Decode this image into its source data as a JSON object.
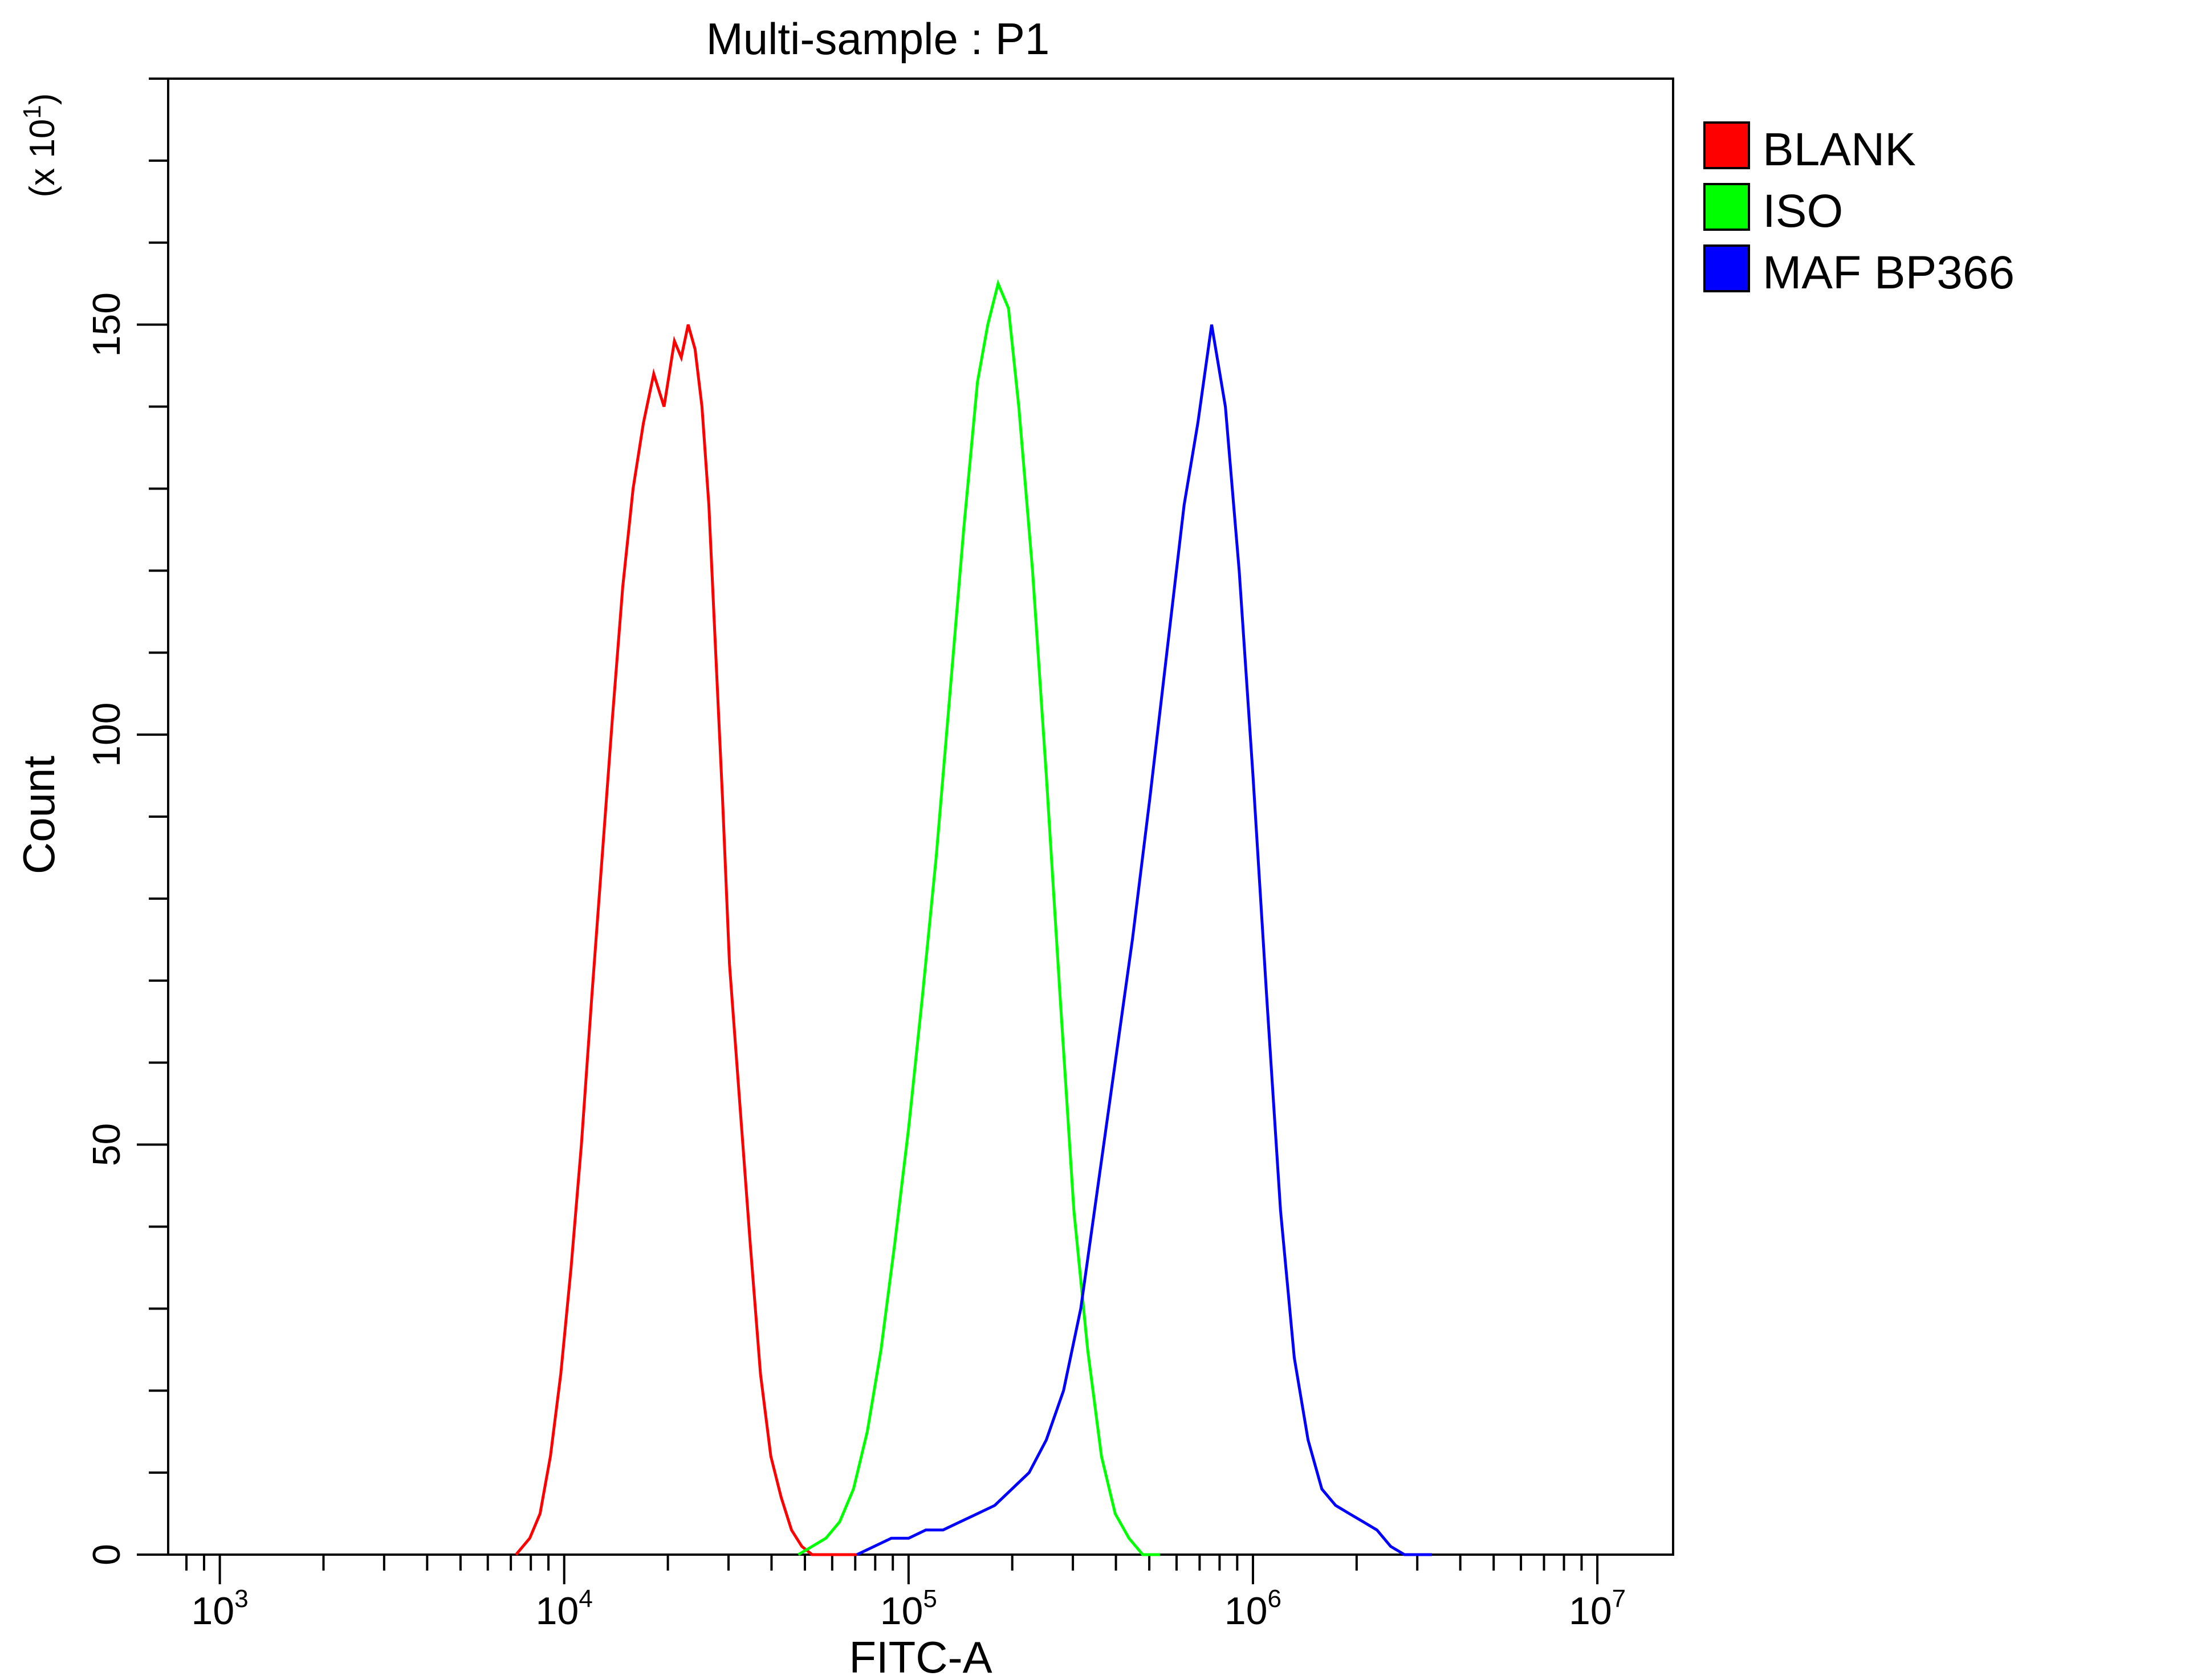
{
  "chart_data": {
    "type": "line",
    "title": "Multi-sample : P1",
    "xlabel": "FITC-A",
    "ylabel": "Count",
    "y_multiplier": {
      "prefix": "(x 10",
      "exponent": "1",
      "suffix": ")"
    },
    "x_scale": "log10",
    "xlim_log10": [
      2.85,
      7.22
    ],
    "ylim": [
      0,
      180
    ],
    "grid": false,
    "legend_position": "top-right-outside",
    "x_ticks": [
      {
        "base": "10",
        "exp": "3",
        "log": 3
      },
      {
        "base": "10",
        "exp": "4",
        "log": 4
      },
      {
        "base": "10",
        "exp": "5",
        "log": 5
      },
      {
        "base": "10",
        "exp": "6",
        "log": 6
      },
      {
        "base": "10",
        "exp": "7",
        "log": 7
      }
    ],
    "y_ticks": [
      {
        "value": 0,
        "label": "0"
      },
      {
        "value": 50,
        "label": "50"
      },
      {
        "value": 100,
        "label": "100"
      },
      {
        "value": 150,
        "label": "150"
      }
    ],
    "series": [
      {
        "name": "BLANK",
        "color": "#ff0000",
        "x_log10": [
          3.86,
          3.9,
          3.93,
          3.96,
          3.99,
          4.02,
          4.05,
          4.08,
          4.11,
          4.14,
          4.17,
          4.2,
          4.23,
          4.26,
          4.29,
          4.32,
          4.34,
          4.36,
          4.38,
          4.4,
          4.42,
          4.44,
          4.46,
          4.48,
          4.51,
          4.54,
          4.57,
          4.6,
          4.63,
          4.66,
          4.69,
          4.72,
          4.75,
          4.78,
          4.81,
          4.85
        ],
        "values": [
          0,
          2,
          5,
          12,
          22,
          35,
          50,
          68,
          85,
          102,
          118,
          130,
          138,
          144,
          140,
          148,
          146,
          150,
          147,
          140,
          128,
          110,
          92,
          72,
          55,
          38,
          22,
          12,
          7,
          3,
          1,
          0,
          0,
          0,
          0,
          0
        ]
      },
      {
        "name": "ISO",
        "color": "#00ff00",
        "x_log10": [
          4.68,
          4.72,
          4.76,
          4.8,
          4.84,
          4.88,
          4.92,
          4.96,
          5.0,
          5.04,
          5.08,
          5.12,
          5.16,
          5.2,
          5.23,
          5.26,
          5.29,
          5.32,
          5.36,
          5.4,
          5.44,
          5.48,
          5.52,
          5.56,
          5.6,
          5.64,
          5.68,
          5.73
        ],
        "values": [
          0,
          1,
          2,
          4,
          8,
          15,
          25,
          38,
          52,
          68,
          85,
          105,
          125,
          143,
          150,
          155,
          152,
          140,
          120,
          95,
          68,
          42,
          25,
          12,
          5,
          2,
          0,
          0
        ]
      },
      {
        "name": "MAF BP366",
        "color": "#0000ff",
        "x_log10": [
          4.85,
          4.9,
          4.95,
          5.0,
          5.05,
          5.1,
          5.15,
          5.2,
          5.25,
          5.3,
          5.35,
          5.4,
          5.45,
          5.5,
          5.55,
          5.6,
          5.65,
          5.7,
          5.75,
          5.8,
          5.84,
          5.88,
          5.92,
          5.96,
          6.0,
          6.04,
          6.08,
          6.12,
          6.16,
          6.2,
          6.24,
          6.28,
          6.32,
          6.36,
          6.4,
          6.44,
          6.48,
          6.52
        ],
        "values": [
          0,
          1,
          2,
          2,
          3,
          3,
          4,
          5,
          6,
          8,
          10,
          14,
          20,
          30,
          45,
          60,
          75,
          92,
          110,
          128,
          138,
          150,
          140,
          120,
          95,
          68,
          42,
          24,
          14,
          8,
          6,
          5,
          4,
          3,
          1,
          0,
          0,
          0
        ]
      }
    ]
  }
}
